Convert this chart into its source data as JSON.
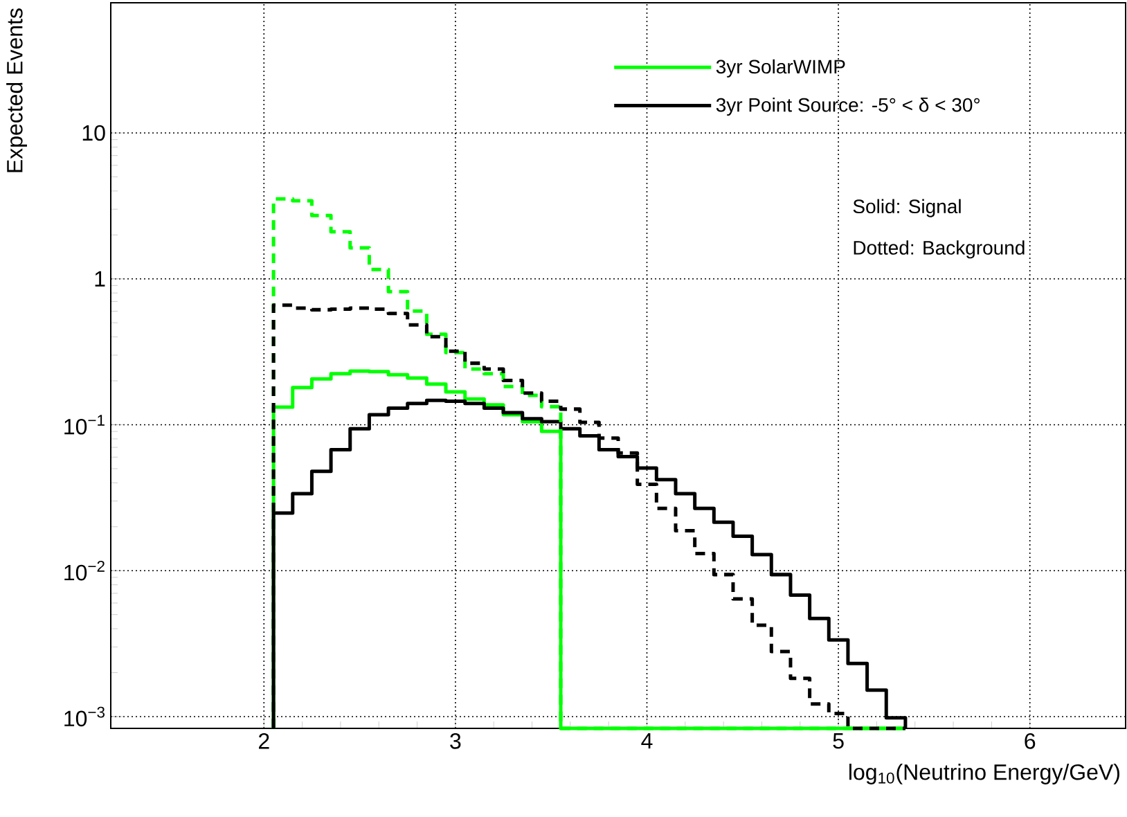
{
  "chart_data": {
    "type": "histogram",
    "xlabel": "log$_{10}$(Neutrino Energy/GeV)",
    "ylabel": "Expected Events",
    "xlim": [
      1.2,
      6.5
    ],
    "xticks": [
      2,
      3,
      4,
      5,
      6
    ],
    "ylim": [
      0.00083,
      78
    ],
    "yticks": [
      {
        "value": 0.001,
        "label": "10$^{−3}$"
      },
      {
        "value": 0.01,
        "label": "10$^{−2}$"
      },
      {
        "value": 0.1,
        "label": "10$^{−1}$"
      },
      1,
      10
    ],
    "log": "y",
    "grid": true,
    "legend": "top right",
    "annotations": [
      "Solid: Signal",
      "Dotted: Background"
    ],
    "bins": [
      2.05,
      2.15,
      2.25,
      2.35,
      2.45,
      2.55,
      2.65,
      2.75,
      2.85,
      2.95,
      3.05,
      3.15,
      3.25,
      3.35,
      3.45,
      3.55,
      3.65,
      3.75,
      3.85,
      3.95,
      4.05,
      4.15,
      4.25,
      4.35,
      4.45,
      4.55,
      4.65,
      4.75,
      4.85,
      4.95,
      5.05,
      5.15,
      5.25,
      5.35
    ],
    "series": [
      {
        "name": "3yr SolarWIMP",
        "color": "#00ff00",
        "line_style": "solid",
        "values": [
          0.132,
          0.18,
          0.206,
          0.224,
          0.233,
          0.231,
          0.22,
          0.209,
          0.19,
          0.168,
          0.15,
          0.137,
          0.117,
          0.105,
          0.09,
          null,
          null,
          null,
          null,
          null,
          null,
          null,
          null,
          null,
          null,
          null,
          null,
          null,
          null,
          null,
          null,
          null,
          null
        ]
      },
      {
        "name": "3yr Point Source:  -5° < δ < 30°",
        "color": "#000000",
        "line_style": "solid",
        "values": [
          0.0248,
          0.0337,
          0.0479,
          0.0674,
          0.094,
          0.117,
          0.13,
          0.14,
          0.147,
          0.145,
          0.14,
          0.13,
          0.121,
          0.11,
          0.105,
          0.094,
          0.084,
          0.0674,
          0.0605,
          0.0505,
          0.042,
          0.0337,
          0.0267,
          0.0215,
          0.0172,
          0.0129,
          0.0094,
          0.0068,
          0.0047,
          0.00335,
          0.00231,
          0.00152,
          0.00098
        ]
      },
      {
        "color": "#00ff00",
        "line_style": "dashed",
        "values": [
          3.53,
          3.43,
          2.72,
          2.1,
          1.63,
          1.16,
          0.817,
          0.601,
          0.417,
          0.312,
          0.241,
          0.224,
          0.183,
          0.159,
          0.133,
          null,
          null,
          null,
          null,
          null,
          null,
          null,
          null,
          null,
          null,
          null,
          null,
          null,
          null,
          null,
          null,
          null,
          null
        ]
      },
      {
        "color": "#000000",
        "line_style": "dashed",
        "values": [
          0.66,
          0.63,
          0.614,
          0.62,
          0.63,
          0.62,
          0.579,
          0.483,
          0.402,
          0.319,
          0.264,
          0.241,
          0.201,
          0.165,
          0.145,
          0.128,
          0.104,
          0.081,
          0.0641,
          0.0391,
          0.0267,
          0.0188,
          0.0131,
          0.0094,
          0.0064,
          0.00423,
          0.00279,
          0.00183,
          0.00122,
          0.00105,
          null,
          null,
          null
        ]
      }
    ]
  }
}
